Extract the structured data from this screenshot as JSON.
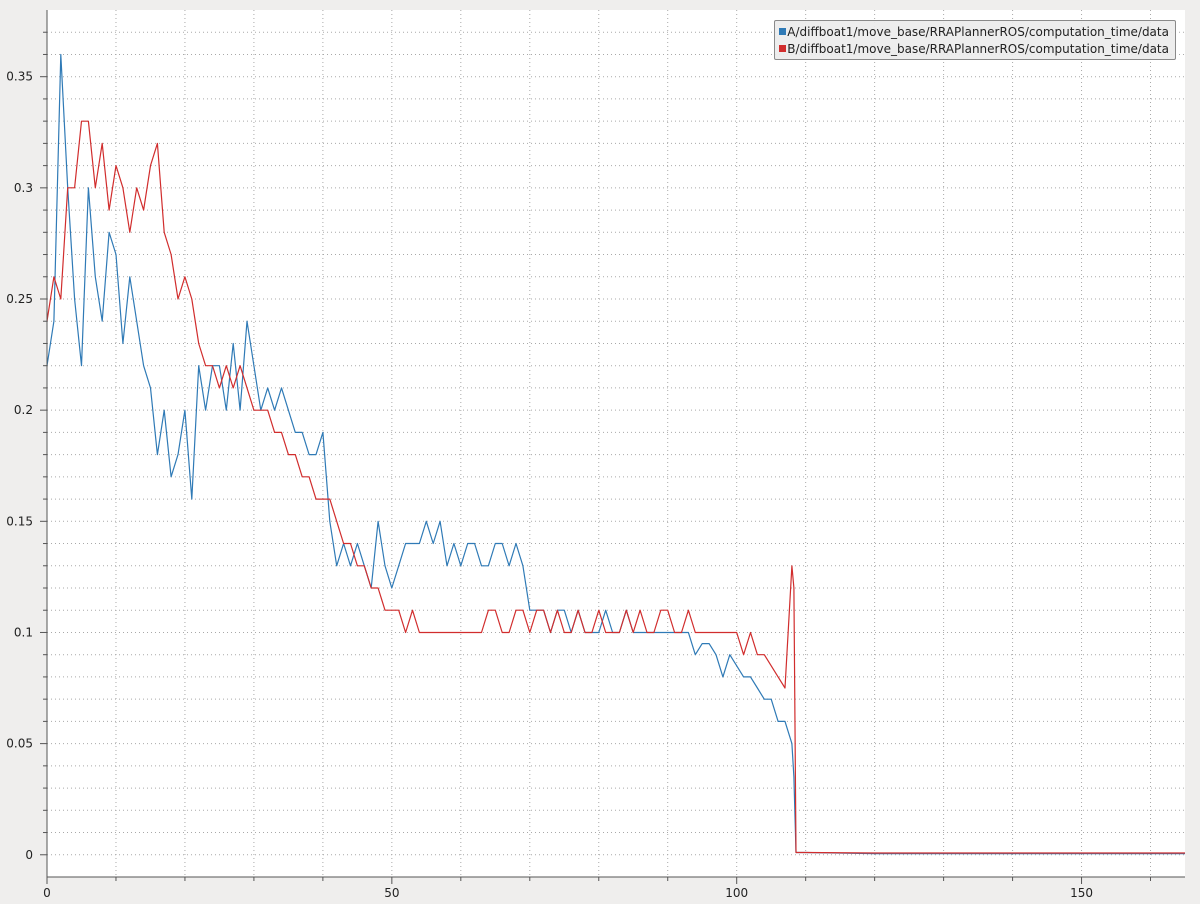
{
  "chart_data": {
    "type": "line",
    "title": "",
    "xlabel": "",
    "ylabel": "",
    "xlim": [
      0,
      165
    ],
    "ylim": [
      -0.01,
      0.38
    ],
    "x_ticks": [
      0,
      50,
      100,
      150
    ],
    "y_ticks": [
      0,
      0.05,
      0.1,
      0.15,
      0.2,
      0.25,
      0.3,
      0.35
    ],
    "x_tick_labels": [
      "0",
      "50",
      "100",
      "150"
    ],
    "y_tick_labels": [
      "0",
      "0.05",
      "0.1",
      "0.15",
      "0.2",
      "0.25",
      "0.3",
      "0.35"
    ],
    "grid": true,
    "legend_position": "top-right",
    "series": [
      {
        "name": "A/diffboat1/move_base/RRAPlannerROS/computation_time/data",
        "color": "#2f7ab6",
        "x": [
          0,
          1,
          2,
          3,
          4,
          5,
          6,
          7,
          8,
          9,
          10,
          11,
          12,
          13,
          14,
          15,
          16,
          17,
          18,
          19,
          20,
          21,
          22,
          23,
          24,
          25,
          26,
          27,
          28,
          29,
          30,
          31,
          32,
          33,
          34,
          35,
          36,
          37,
          38,
          39,
          40,
          41,
          42,
          43,
          44,
          45,
          46,
          47,
          48,
          49,
          50,
          51,
          52,
          53,
          54,
          55,
          56,
          57,
          58,
          59,
          60,
          61,
          62,
          63,
          64,
          65,
          66,
          67,
          68,
          69,
          70,
          71,
          72,
          73,
          74,
          75,
          76,
          77,
          78,
          79,
          80,
          81,
          82,
          83,
          84,
          85,
          86,
          87,
          88,
          89,
          90,
          91,
          92,
          93,
          94,
          95,
          96,
          97,
          98,
          99,
          100,
          101,
          102,
          103,
          104,
          105,
          106,
          107,
          108,
          108.3,
          108.6,
          109,
          110,
          120,
          130,
          140,
          150,
          160,
          165
        ],
        "y": [
          0.22,
          0.24,
          0.36,
          0.3,
          0.25,
          0.22,
          0.3,
          0.26,
          0.24,
          0.28,
          0.27,
          0.23,
          0.26,
          0.24,
          0.22,
          0.21,
          0.18,
          0.2,
          0.17,
          0.18,
          0.2,
          0.16,
          0.22,
          0.2,
          0.22,
          0.22,
          0.2,
          0.23,
          0.2,
          0.24,
          0.22,
          0.2,
          0.21,
          0.2,
          0.21,
          0.2,
          0.19,
          0.19,
          0.18,
          0.18,
          0.19,
          0.15,
          0.13,
          0.14,
          0.13,
          0.14,
          0.13,
          0.12,
          0.15,
          0.13,
          0.12,
          0.13,
          0.14,
          0.14,
          0.14,
          0.15,
          0.14,
          0.15,
          0.13,
          0.14,
          0.13,
          0.14,
          0.14,
          0.13,
          0.13,
          0.14,
          0.14,
          0.13,
          0.14,
          0.13,
          0.11,
          0.11,
          0.11,
          0.1,
          0.11,
          0.11,
          0.1,
          0.11,
          0.1,
          0.1,
          0.1,
          0.11,
          0.1,
          0.1,
          0.11,
          0.1,
          0.1,
          0.1,
          0.1,
          0.1,
          0.1,
          0.1,
          0.1,
          0.1,
          0.09,
          0.095,
          0.095,
          0.09,
          0.08,
          0.09,
          0.085,
          0.08,
          0.08,
          0.075,
          0.07,
          0.07,
          0.06,
          0.06,
          0.05,
          0.035,
          0.001,
          0.001,
          0.001,
          0.0005,
          0.0005,
          0.0005,
          0.0005,
          0.0005,
          0.0005
        ]
      },
      {
        "name": "B/diffboat1/move_base/RRAPlannerROS/computation_time/data",
        "color": "#d12d2d",
        "x": [
          0,
          1,
          2,
          3,
          4,
          5,
          6,
          7,
          8,
          9,
          10,
          11,
          12,
          13,
          14,
          15,
          16,
          17,
          18,
          19,
          20,
          21,
          22,
          23,
          24,
          25,
          26,
          27,
          28,
          29,
          30,
          31,
          32,
          33,
          34,
          35,
          36,
          37,
          38,
          39,
          40,
          41,
          42,
          43,
          44,
          45,
          46,
          47,
          48,
          49,
          50,
          51,
          52,
          53,
          54,
          55,
          56,
          57,
          58,
          59,
          60,
          61,
          62,
          63,
          64,
          65,
          66,
          67,
          68,
          69,
          70,
          71,
          72,
          73,
          74,
          75,
          76,
          77,
          78,
          79,
          80,
          81,
          82,
          83,
          84,
          85,
          86,
          87,
          88,
          89,
          90,
          91,
          92,
          93,
          94,
          95,
          96,
          97,
          98,
          99,
          100,
          101,
          102,
          103,
          104,
          105,
          106,
          107,
          108,
          108.3,
          108.6,
          109,
          110,
          120,
          130,
          140,
          150,
          160,
          165
        ],
        "y": [
          0.24,
          0.26,
          0.25,
          0.3,
          0.3,
          0.33,
          0.33,
          0.3,
          0.32,
          0.29,
          0.31,
          0.3,
          0.28,
          0.3,
          0.29,
          0.31,
          0.32,
          0.28,
          0.27,
          0.25,
          0.26,
          0.25,
          0.23,
          0.22,
          0.22,
          0.21,
          0.22,
          0.21,
          0.22,
          0.21,
          0.2,
          0.2,
          0.2,
          0.19,
          0.19,
          0.18,
          0.18,
          0.17,
          0.17,
          0.16,
          0.16,
          0.16,
          0.15,
          0.14,
          0.14,
          0.13,
          0.13,
          0.12,
          0.12,
          0.11,
          0.11,
          0.11,
          0.1,
          0.11,
          0.1,
          0.1,
          0.1,
          0.1,
          0.1,
          0.1,
          0.1,
          0.1,
          0.1,
          0.1,
          0.11,
          0.11,
          0.1,
          0.1,
          0.11,
          0.11,
          0.1,
          0.11,
          0.11,
          0.1,
          0.11,
          0.1,
          0.1,
          0.11,
          0.1,
          0.1,
          0.11,
          0.1,
          0.1,
          0.1,
          0.11,
          0.1,
          0.11,
          0.1,
          0.1,
          0.11,
          0.11,
          0.1,
          0.1,
          0.11,
          0.1,
          0.1,
          0.1,
          0.1,
          0.1,
          0.1,
          0.1,
          0.09,
          0.1,
          0.09,
          0.09,
          0.085,
          0.08,
          0.075,
          0.13,
          0.12,
          0.001,
          0.001,
          0.001,
          0.0008,
          0.0008,
          0.0008,
          0.0008,
          0.0008,
          0.0008
        ]
      }
    ]
  },
  "legend": {
    "series_a_label": "A/diffboat1/move_base/RRAPlannerROS/computation_time/data",
    "series_b_label": "B/diffboat1/move_base/RRAPlannerROS/computation_time/data",
    "series_a_color": "#2f7ab6",
    "series_b_color": "#d12d2d"
  }
}
